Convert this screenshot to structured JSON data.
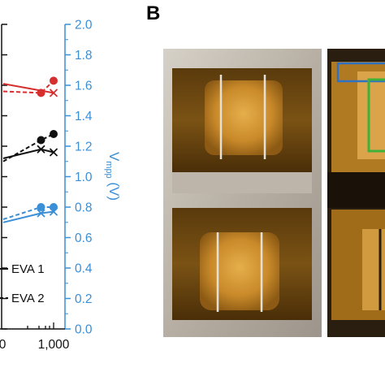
{
  "figure": {
    "panel_b_label": "B"
  },
  "chart_data": {
    "type": "line",
    "right_axis": {
      "label_main": "V",
      "label_sub": "mpp",
      "label_unit": " (V)",
      "ylim": [
        0.0,
        2.0
      ],
      "ticks": [
        "2.0",
        "1.8",
        "1.6",
        "1.4",
        "1.2",
        "1.0",
        "0.8",
        "0.6",
        "0.4",
        "0.2",
        "0.0"
      ]
    },
    "x_axis": {
      "visible_ticks": [
        "0",
        "1,000"
      ],
      "xlim_visible": [
        0,
        1000
      ]
    },
    "legend": [
      {
        "label": "EVA 1",
        "style": "solid"
      },
      {
        "label": "EVA 2",
        "style": "dashed"
      }
    ],
    "series": [
      {
        "group": "red",
        "color": "#d62f2f",
        "line": "solid",
        "marker": "x",
        "points": [
          {
            "x": 0,
            "y": 1.61
          },
          {
            "x": 1000,
            "y": 1.55
          }
        ]
      },
      {
        "group": "red",
        "color": "#d62f2f",
        "line": "dashed",
        "marker": "circle",
        "points": [
          {
            "x": 0,
            "y": 1.56
          },
          {
            "x": 750,
            "y": 1.55
          },
          {
            "x": 1000,
            "y": 1.63
          }
        ]
      },
      {
        "group": "black",
        "color": "#111111",
        "line": "solid",
        "marker": "x",
        "points": [
          {
            "x": 0,
            "y": 1.12
          },
          {
            "x": 750,
            "y": 1.18
          },
          {
            "x": 1000,
            "y": 1.16
          }
        ]
      },
      {
        "group": "black",
        "color": "#111111",
        "line": "dashed",
        "marker": "circle",
        "points": [
          {
            "x": 0,
            "y": 1.1
          },
          {
            "x": 750,
            "y": 1.24
          },
          {
            "x": 1000,
            "y": 1.28
          }
        ]
      },
      {
        "group": "blue",
        "color": "#3b8fd6",
        "line": "solid",
        "marker": "x",
        "points": [
          {
            "x": 0,
            "y": 0.7
          },
          {
            "x": 750,
            "y": 0.76
          },
          {
            "x": 1000,
            "y": 0.77
          }
        ]
      },
      {
        "group": "blue",
        "color": "#3b8fd6",
        "line": "dashed",
        "marker": "circle",
        "points": [
          {
            "x": 0,
            "y": 0.72
          },
          {
            "x": 750,
            "y": 0.8
          },
          {
            "x": 1000,
            "y": 0.8
          }
        ]
      }
    ]
  },
  "photos": {
    "colors": {
      "frame": "#c8c2b8",
      "encapsulant": "#7a5214",
      "cell": "#c98a2a",
      "box_blue": "#2f72c4",
      "box_green": "#3fb13a"
    }
  }
}
